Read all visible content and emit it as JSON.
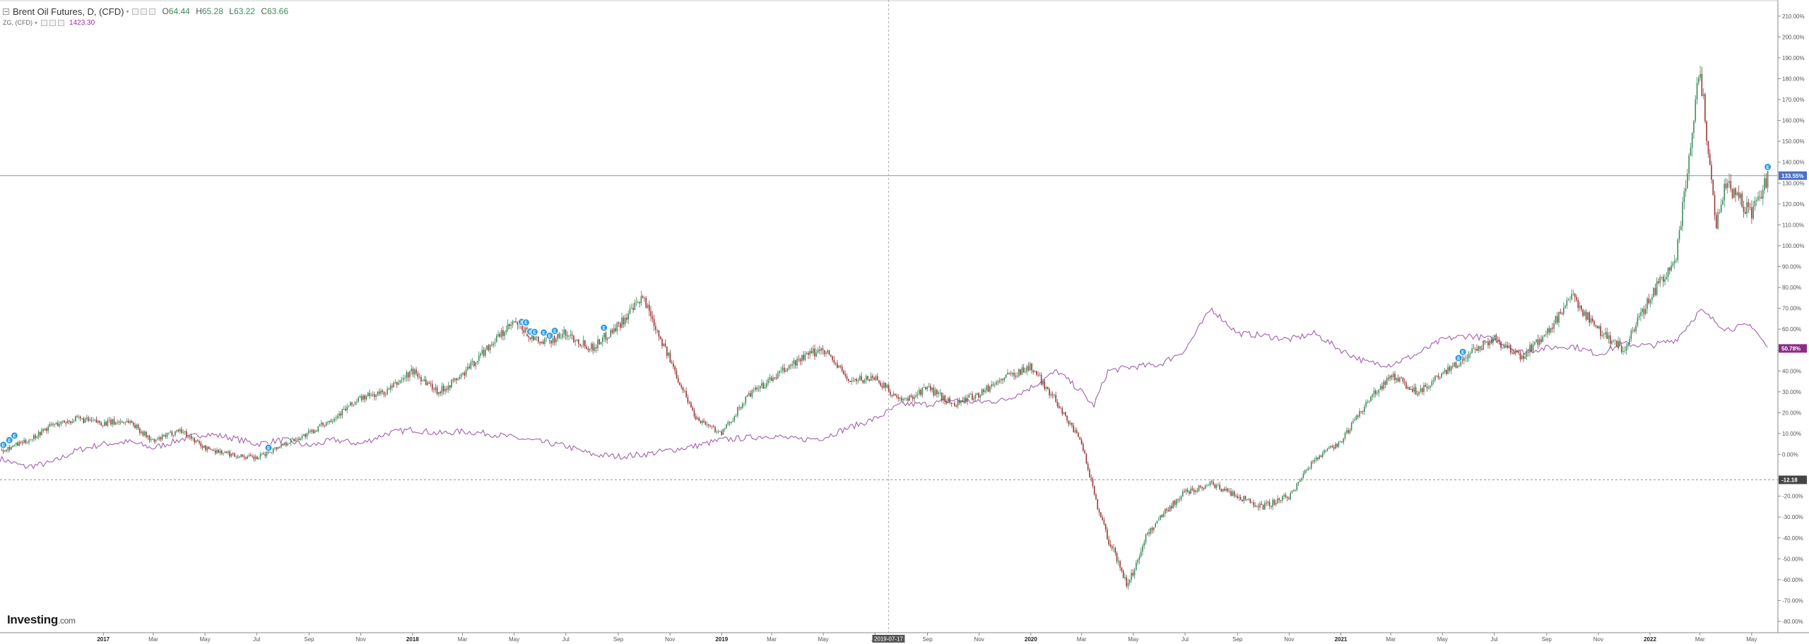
{
  "legend": {
    "main_title": "Brent Oil Futures, D, (CFD)",
    "ohlc": [
      {
        "k": "O",
        "v": "64.44"
      },
      {
        "k": "H",
        "v": "65.28"
      },
      {
        "k": "L",
        "v": "63.22"
      },
      {
        "k": "C",
        "v": "63.66"
      }
    ],
    "sub_title": "ZG, (CFD)",
    "sub_value": "1423.30"
  },
  "logo": {
    "main": "Investing",
    "suffix": ".com"
  },
  "colors": {
    "up": "#3d8b5c",
    "down": "#9c3535",
    "compare_line": "#a35fae",
    "price_line_badge": "#4a6fc4",
    "compare_badge": "#8b2c86",
    "baseline_badge": "#444444",
    "crosshair_badge": "#555555",
    "event_marker": "#2c9be3"
  },
  "chart_data": {
    "type": "line",
    "title": "Brent Oil Futures, D, (CFD)",
    "ylabel": "",
    "xlabel": "",
    "y_unit": "%",
    "ylim": [
      -80,
      215
    ],
    "y_ticks": [
      "210.00%",
      "200.00%",
      "190.00%",
      "180.00%",
      "170.00%",
      "160.00%",
      "150.00%",
      "140.00%",
      "130.00%",
      "120.00%",
      "110.00%",
      "100.00%",
      "90.00%",
      "80.00%",
      "70.00%",
      "60.00%",
      "50.00%",
      "40.00%",
      "30.00%",
      "20.00%",
      "10.00%",
      "0.00%",
      "-20.00%",
      "-30.00%",
      "-40.00%",
      "-50.00%",
      "-60.00%",
      "-70.00%",
      "-80.00%"
    ],
    "y_tick_values": [
      210,
      200,
      190,
      180,
      170,
      160,
      150,
      140,
      130,
      120,
      110,
      100,
      90,
      80,
      70,
      60,
      50,
      40,
      30,
      20,
      10,
      0,
      -20,
      -30,
      -40,
      -50,
      -60,
      -70,
      -80
    ],
    "x_ticks": [
      "2017",
      "Mar",
      "May",
      "Jul",
      "Sep",
      "Nov",
      "2018",
      "Mar",
      "May",
      "Jul",
      "Sep",
      "Nov",
      "2019",
      "Mar",
      "May",
      "Jul",
      "Sep",
      "Nov",
      "2020",
      "Mar",
      "May",
      "Jul",
      "Sep",
      "Nov",
      "2021",
      "Mar",
      "May",
      "Jul",
      "Sep",
      "Nov",
      "2022",
      "Mar",
      "May"
    ],
    "x_tick_dates": [
      "2017-01-01",
      "2017-03-01",
      "2017-05-01",
      "2017-07-01",
      "2017-09-01",
      "2017-11-01",
      "2018-01-01",
      "2018-03-01",
      "2018-05-01",
      "2018-07-01",
      "2018-09-01",
      "2018-11-01",
      "2019-01-01",
      "2019-03-01",
      "2019-05-01",
      "2019-07-01",
      "2019-09-01",
      "2019-11-01",
      "2020-01-01",
      "2020-03-01",
      "2020-05-01",
      "2020-07-01",
      "2020-09-01",
      "2020-11-01",
      "2021-01-01",
      "2021-03-01",
      "2021-05-01",
      "2021-07-01",
      "2021-09-01",
      "2021-11-01",
      "2022-01-01",
      "2022-03-01",
      "2022-05-01"
    ],
    "x_range": [
      "2016-09-01",
      "2022-06-01"
    ],
    "grid": false,
    "badges": [
      {
        "label": "133.55%",
        "value": 133.55,
        "role": "last-price"
      },
      {
        "label": "50.78%",
        "value": 50.78,
        "role": "compare-last"
      },
      {
        "label": "-12.18",
        "value": -12.18,
        "role": "baseline"
      }
    ],
    "crosshair": {
      "date": "2019-07-17",
      "label": "2019-07-17"
    },
    "series": [
      {
        "name": "Brent Oil Futures, D, (CFD)",
        "style": "candles",
        "points": [
          [
            "2016-09-01",
            2
          ],
          [
            "2016-10-01",
            6
          ],
          [
            "2016-11-01",
            14
          ],
          [
            "2016-12-01",
            17
          ],
          [
            "2017-01-01",
            15
          ],
          [
            "2017-02-01",
            16
          ],
          [
            "2017-03-01",
            6
          ],
          [
            "2017-04-01",
            12
          ],
          [
            "2017-05-01",
            3
          ],
          [
            "2017-06-01",
            0
          ],
          [
            "2017-07-01",
            -2
          ],
          [
            "2017-08-01",
            5
          ],
          [
            "2017-09-01",
            10
          ],
          [
            "2017-10-01",
            18
          ],
          [
            "2017-11-01",
            27
          ],
          [
            "2017-12-01",
            30
          ],
          [
            "2018-01-01",
            40
          ],
          [
            "2018-02-01",
            30
          ],
          [
            "2018-03-01",
            38
          ],
          [
            "2018-04-01",
            52
          ],
          [
            "2018-05-01",
            63
          ],
          [
            "2018-06-01",
            53
          ],
          [
            "2018-07-01",
            58
          ],
          [
            "2018-08-01",
            51
          ],
          [
            "2018-09-01",
            62
          ],
          [
            "2018-10-01",
            75
          ],
          [
            "2018-11-01",
            45
          ],
          [
            "2018-12-01",
            18
          ],
          [
            "2019-01-01",
            10
          ],
          [
            "2019-02-01",
            28
          ],
          [
            "2019-03-01",
            36
          ],
          [
            "2019-04-01",
            45
          ],
          [
            "2019-05-01",
            51
          ],
          [
            "2019-06-01",
            35
          ],
          [
            "2019-07-01",
            37
          ],
          [
            "2019-08-01",
            25
          ],
          [
            "2019-09-01",
            32
          ],
          [
            "2019-10-01",
            24
          ],
          [
            "2019-11-01",
            29
          ],
          [
            "2019-12-01",
            37
          ],
          [
            "2020-01-01",
            42
          ],
          [
            "2020-02-01",
            25
          ],
          [
            "2020-03-01",
            5
          ],
          [
            "2020-03-20",
            -25
          ],
          [
            "2020-04-01",
            -40
          ],
          [
            "2020-04-25",
            -63
          ],
          [
            "2020-05-15",
            -40
          ],
          [
            "2020-06-01",
            -30
          ],
          [
            "2020-07-01",
            -18
          ],
          [
            "2020-08-01",
            -14
          ],
          [
            "2020-09-01",
            -20
          ],
          [
            "2020-10-01",
            -25
          ],
          [
            "2020-11-01",
            -20
          ],
          [
            "2020-12-01",
            -2
          ],
          [
            "2021-01-01",
            6
          ],
          [
            "2021-02-01",
            25
          ],
          [
            "2021-03-01",
            38
          ],
          [
            "2021-04-01",
            30
          ],
          [
            "2021-05-01",
            38
          ],
          [
            "2021-06-01",
            48
          ],
          [
            "2021-07-01",
            56
          ],
          [
            "2021-08-01",
            46
          ],
          [
            "2021-09-01",
            58
          ],
          [
            "2021-10-01",
            75
          ],
          [
            "2021-11-01",
            60
          ],
          [
            "2021-12-01",
            50
          ],
          [
            "2022-01-01",
            75
          ],
          [
            "2022-02-01",
            95
          ],
          [
            "2022-03-01",
            185
          ],
          [
            "2022-03-20",
            110
          ],
          [
            "2022-04-01",
            130
          ],
          [
            "2022-05-01",
            115
          ],
          [
            "2022-05-20",
            133
          ]
        ]
      },
      {
        "name": "ZG, (CFD)",
        "style": "line",
        "points": [
          [
            "2016-09-01",
            -2
          ],
          [
            "2016-10-01",
            -6
          ],
          [
            "2016-11-01",
            -4
          ],
          [
            "2016-12-01",
            2
          ],
          [
            "2017-01-01",
            5
          ],
          [
            "2017-02-01",
            6
          ],
          [
            "2017-03-01",
            3
          ],
          [
            "2017-04-01",
            7
          ],
          [
            "2017-05-01",
            10
          ],
          [
            "2017-06-01",
            8
          ],
          [
            "2017-07-01",
            5
          ],
          [
            "2017-08-01",
            7
          ],
          [
            "2017-09-01",
            4
          ],
          [
            "2017-10-01",
            7
          ],
          [
            "2017-11-01",
            5
          ],
          [
            "2017-12-01",
            10
          ],
          [
            "2018-01-01",
            12
          ],
          [
            "2018-02-01",
            10
          ],
          [
            "2018-03-01",
            11
          ],
          [
            "2018-04-01",
            10
          ],
          [
            "2018-05-01",
            8
          ],
          [
            "2018-06-01",
            6
          ],
          [
            "2018-07-01",
            4
          ],
          [
            "2018-08-01",
            0
          ],
          [
            "2018-09-01",
            -1
          ],
          [
            "2018-10-01",
            0
          ],
          [
            "2018-11-01",
            2
          ],
          [
            "2018-12-01",
            4
          ],
          [
            "2019-01-01",
            7
          ],
          [
            "2019-02-01",
            8
          ],
          [
            "2019-03-01",
            9
          ],
          [
            "2019-04-01",
            7
          ],
          [
            "2019-05-01",
            8
          ],
          [
            "2019-06-01",
            13
          ],
          [
            "2019-07-01",
            17
          ],
          [
            "2019-08-01",
            24
          ],
          [
            "2019-09-01",
            24
          ],
          [
            "2019-10-01",
            26
          ],
          [
            "2019-11-01",
            25
          ],
          [
            "2019-12-01",
            26
          ],
          [
            "2020-01-01",
            32
          ],
          [
            "2020-02-01",
            40
          ],
          [
            "2020-03-01",
            30
          ],
          [
            "2020-03-15",
            23
          ],
          [
            "2020-04-01",
            40
          ],
          [
            "2020-05-01",
            42
          ],
          [
            "2020-06-01",
            43
          ],
          [
            "2020-07-01",
            50
          ],
          [
            "2020-08-01",
            70
          ],
          [
            "2020-09-01",
            58
          ],
          [
            "2020-10-01",
            57
          ],
          [
            "2020-11-01",
            55
          ],
          [
            "2020-12-01",
            58
          ],
          [
            "2021-01-01",
            50
          ],
          [
            "2021-02-01",
            44
          ],
          [
            "2021-03-01",
            43
          ],
          [
            "2021-04-01",
            48
          ],
          [
            "2021-05-01",
            55
          ],
          [
            "2021-06-01",
            57
          ],
          [
            "2021-07-01",
            55
          ],
          [
            "2021-08-01",
            49
          ],
          [
            "2021-09-01",
            51
          ],
          [
            "2021-10-01",
            52
          ],
          [
            "2021-11-01",
            48
          ],
          [
            "2021-12-01",
            53
          ],
          [
            "2022-01-01",
            52
          ],
          [
            "2022-02-01",
            55
          ],
          [
            "2022-03-01",
            69
          ],
          [
            "2022-04-01",
            60
          ],
          [
            "2022-05-01",
            62
          ],
          [
            "2022-05-20",
            50.78
          ]
        ]
      }
    ],
    "event_markers": [
      "2016-09-05",
      "2016-09-12",
      "2016-09-18",
      "2017-07-15",
      "2018-05-10",
      "2018-05-15",
      "2018-05-20",
      "2018-05-25",
      "2018-06-05",
      "2018-06-12",
      "2018-06-18",
      "2018-08-15",
      "2021-05-20",
      "2021-05-25",
      "2022-05-20"
    ]
  }
}
